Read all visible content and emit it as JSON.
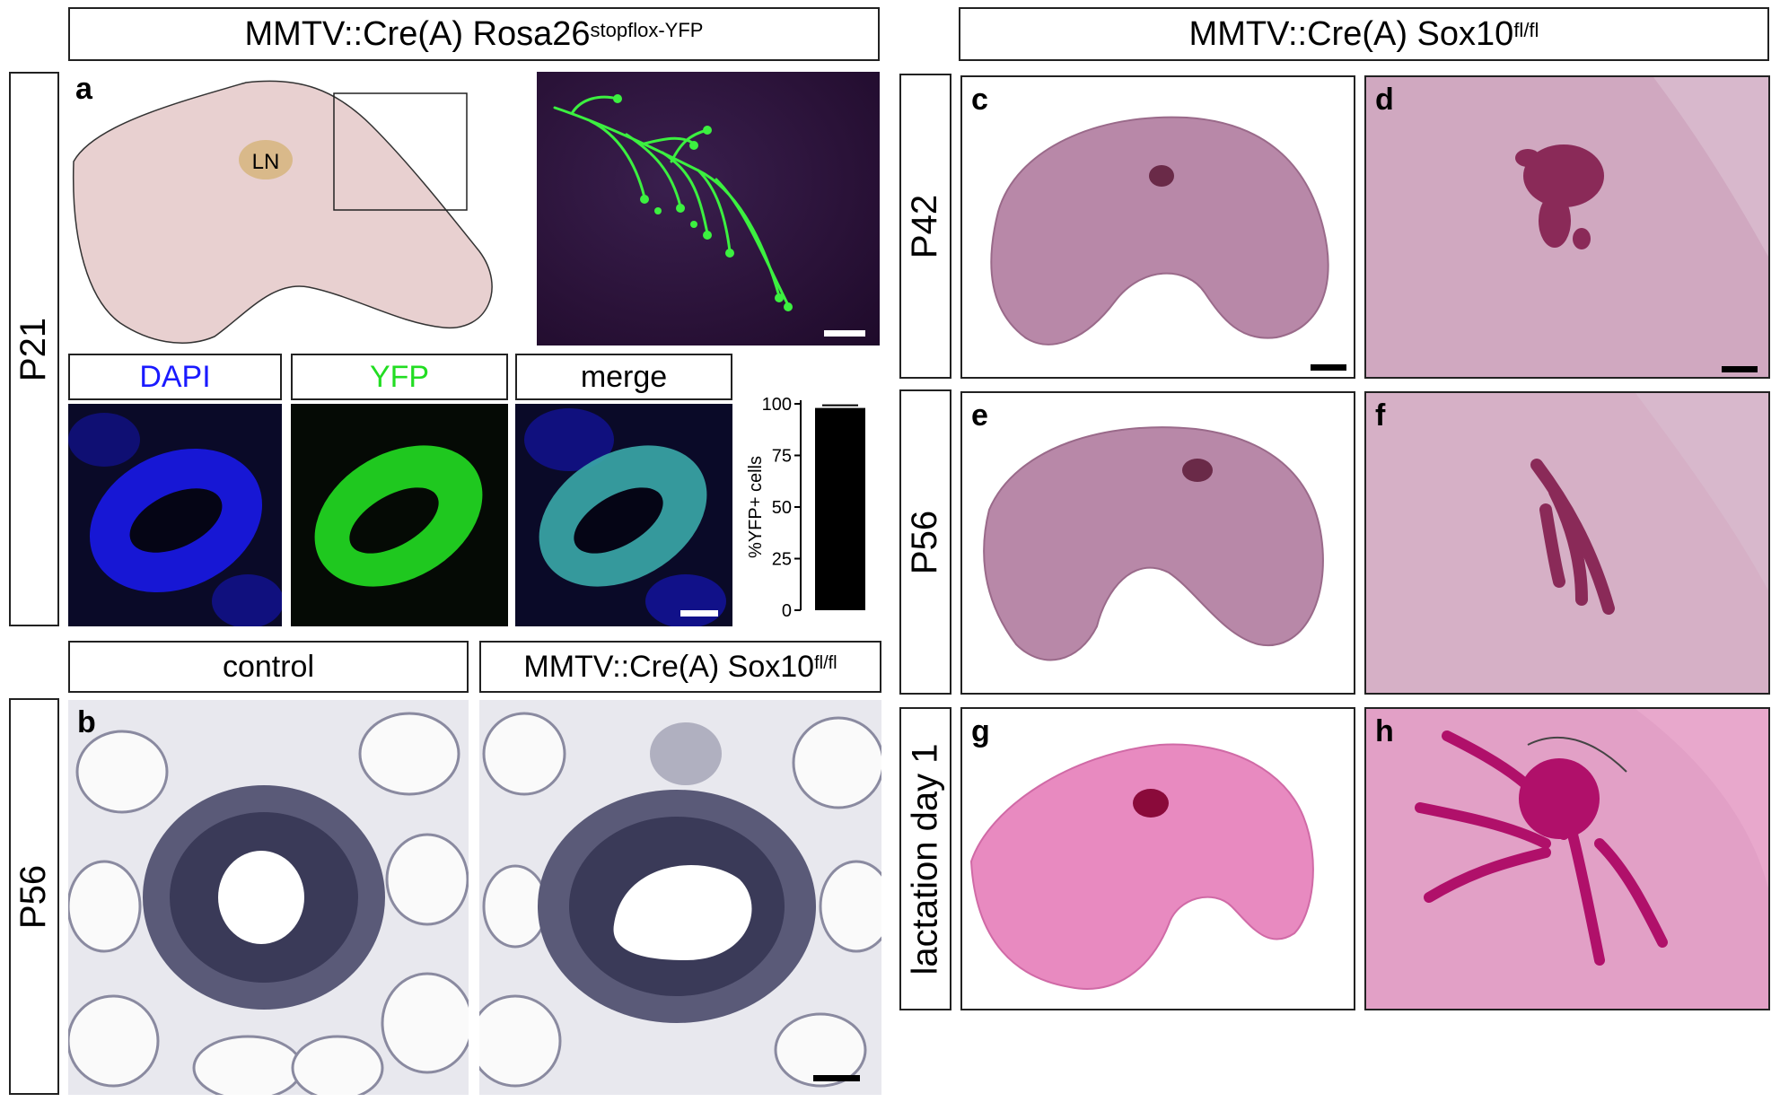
{
  "headers": {
    "left": {
      "main": "MMTV::Cre(A) Rosa26",
      "sup": "stopflox-YFP"
    },
    "right": {
      "main": "MMTV::Cre(A) Sox10",
      "sup": "fl/fl"
    }
  },
  "rows": {
    "p21": "P21",
    "p56_left": "P56",
    "p42": "P42",
    "p56_right": "P56",
    "lactation": "lactation day 1"
  },
  "panels": {
    "a": "a",
    "b": "b",
    "c": "c",
    "d": "d",
    "e": "e",
    "f": "f",
    "g": "g",
    "h": "h"
  },
  "schematic": {
    "ln_label": "LN"
  },
  "channels": {
    "dapi": "DAPI",
    "yfp": "YFP",
    "merge": "merge"
  },
  "histology": {
    "control": "control",
    "mutant": {
      "main": "MMTV::Cre(A) Sox10",
      "sup": "fl/fl"
    }
  },
  "colors": {
    "dapi": "#1a1aff",
    "yfp": "#22dd22",
    "tissue": "#e8d0d0",
    "ln": "#d9b98a",
    "whole_mount": "#b06a90",
    "lactation": "#e0409a"
  },
  "chart_data": {
    "type": "bar",
    "categories": [
      ""
    ],
    "values": [
      98
    ],
    "ylabel": "%YFP+ cells",
    "ylim": [
      0,
      100
    ],
    "yticks": [
      0,
      25,
      50,
      75,
      100
    ]
  }
}
